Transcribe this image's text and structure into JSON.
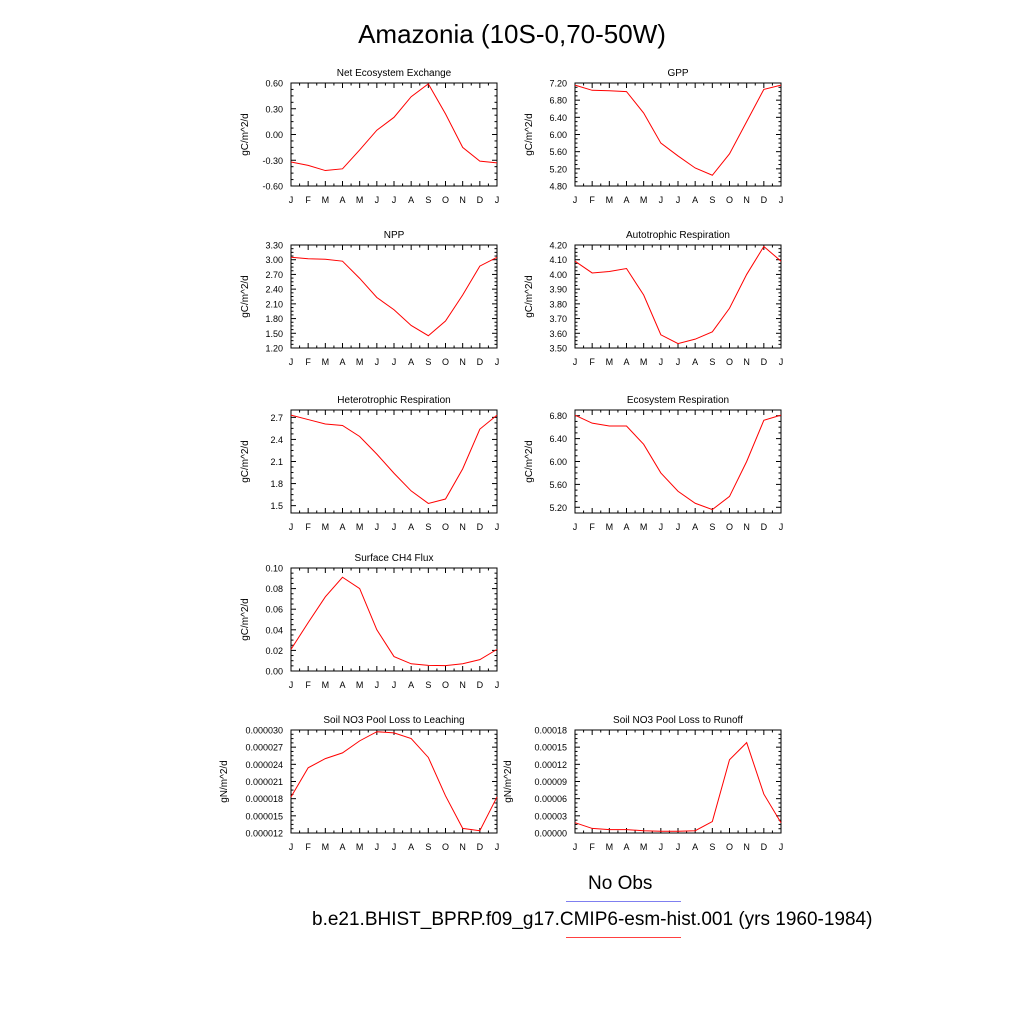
{
  "title": "Amazonia (10S-0,70-50W)",
  "months": [
    "J",
    "F",
    "M",
    "A",
    "M",
    "J",
    "J",
    "A",
    "S",
    "O",
    "N",
    "D",
    "J"
  ],
  "legend": {
    "obs_label": "No Obs",
    "obs_color": "#7f7ff0",
    "model_label": "b.e21.BHIST_BPRP.f09_g17.CMIP6-esm-hist.001 (yrs 1960-1984)",
    "model_color": "#ff4040"
  },
  "series_color": "#ff0000",
  "chart_data": [
    {
      "type": "line",
      "title": "Net Ecosystem Exchange",
      "ylabel": "gC/m^2/d",
      "ylim": [
        -0.6,
        0.6
      ],
      "yticks": [
        "-0.60",
        "-0.30",
        "0.00",
        "0.30",
        "0.60"
      ],
      "values": [
        -0.32,
        -0.36,
        -0.42,
        -0.4,
        -0.18,
        0.05,
        0.2,
        0.44,
        0.59,
        0.24,
        -0.15,
        -0.31,
        -0.33
      ]
    },
    {
      "type": "line",
      "title": "GPP",
      "ylabel": "gC/m^2/d",
      "ylim": [
        4.8,
        7.2
      ],
      "yticks": [
        "4.80",
        "5.20",
        "5.60",
        "6.00",
        "6.40",
        "6.80",
        "7.20"
      ],
      "values": [
        7.15,
        7.03,
        7.02,
        7.0,
        6.5,
        5.8,
        5.5,
        5.22,
        5.05,
        5.55,
        6.3,
        7.05,
        7.15
      ]
    },
    {
      "type": "line",
      "title": "NPP",
      "ylabel": "gC/m^2/d",
      "ylim": [
        1.2,
        3.3
      ],
      "yticks": [
        "1.20",
        "1.50",
        "1.80",
        "2.10",
        "2.40",
        "2.70",
        "3.00",
        "3.30"
      ],
      "values": [
        3.05,
        3.02,
        3.01,
        2.97,
        2.62,
        2.23,
        1.98,
        1.66,
        1.45,
        1.75,
        2.28,
        2.87,
        3.05
      ]
    },
    {
      "type": "line",
      "title": "Autotrophic Respiration",
      "ylabel": "gC/m^2/d",
      "ylim": [
        3.5,
        4.2
      ],
      "yticks": [
        "3.50",
        "3.60",
        "3.70",
        "3.80",
        "3.90",
        "4.00",
        "4.10",
        "4.20"
      ],
      "values": [
        4.09,
        4.01,
        4.02,
        4.04,
        3.86,
        3.59,
        3.53,
        3.56,
        3.61,
        3.77,
        4.0,
        4.19,
        4.09
      ]
    },
    {
      "type": "line",
      "title": "Heterotrophic Respiration",
      "ylabel": "gC/m^2/d",
      "ylim": [
        1.4,
        2.8
      ],
      "yticks": [
        "1.5",
        "1.8",
        "2.1",
        "2.4",
        "2.7"
      ],
      "values": [
        2.73,
        2.67,
        2.61,
        2.59,
        2.44,
        2.2,
        1.94,
        1.7,
        1.53,
        1.59,
        2.0,
        2.54,
        2.73
      ]
    },
    {
      "type": "line",
      "title": "Ecosystem Respiration",
      "ylabel": "gC/m^2/d",
      "ylim": [
        5.1,
        6.9
      ],
      "yticks": [
        "5.20",
        "5.60",
        "6.00",
        "6.40",
        "6.80"
      ],
      "values": [
        6.81,
        6.67,
        6.62,
        6.62,
        6.3,
        5.8,
        5.48,
        5.27,
        5.16,
        5.39,
        6.0,
        6.72,
        6.81
      ]
    },
    {
      "type": "line",
      "title": "Surface CH4 Flux",
      "ylabel": "gC/m^2/d",
      "ylim": [
        0.0,
        0.1
      ],
      "yticks": [
        "0.00",
        "0.02",
        "0.04",
        "0.06",
        "0.08",
        "0.10"
      ],
      "values": [
        0.021,
        0.047,
        0.072,
        0.091,
        0.08,
        0.04,
        0.014,
        0.007,
        0.0055,
        0.0052,
        0.007,
        0.011,
        0.021
      ]
    },
    {
      "type": "line",
      "title": "Soil NO3 Pool Loss to Leaching",
      "ylabel": "gN/m^2/d",
      "ylim": [
        1.2e-05,
        3e-05
      ],
      "yticks": [
        "0.000012",
        "0.000015",
        "0.000018",
        "0.000021",
        "0.000024",
        "0.000027",
        "0.000030"
      ],
      "values": [
        1.83e-05,
        2.34e-05,
        2.5e-05,
        2.6e-05,
        2.81e-05,
        2.97e-05,
        2.95e-05,
        2.85e-05,
        2.52e-05,
        1.85e-05,
        1.28e-05,
        1.24e-05,
        1.83e-05
      ]
    },
    {
      "type": "line",
      "title": "Soil NO3 Pool Loss to Runoff",
      "ylabel": "gN/m^2/d",
      "ylim": [
        0,
        0.00018
      ],
      "yticks": [
        "0.00000",
        "0.00003",
        "0.00006",
        "0.00009",
        "0.00012",
        "0.00015",
        "0.00018"
      ],
      "values": [
        1.8e-05,
        8e-06,
        6e-06,
        6e-06,
        4e-06,
        3e-06,
        3e-06,
        4e-06,
        2e-05,
        0.000128,
        0.000158,
        6.8e-05,
        1.8e-05
      ]
    }
  ]
}
